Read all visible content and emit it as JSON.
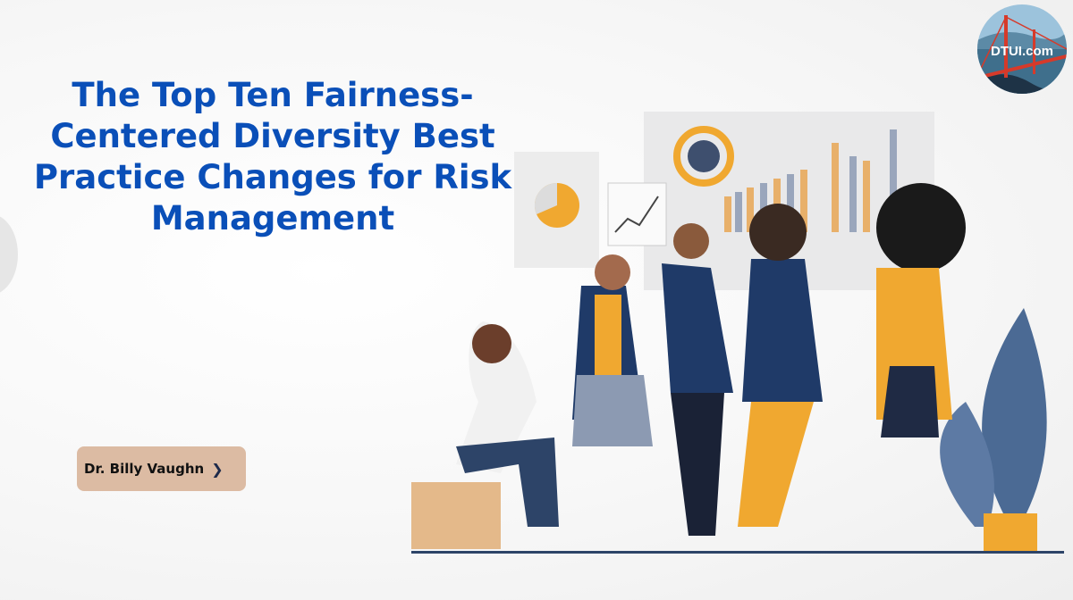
{
  "title": "The Top Ten Fairness-Centered Diversity Best Practice Changes for Risk Management",
  "title_lines": [
    "The Top Ten Fairness-",
    "Centered Diversity Best",
    "Practice Changes for Risk",
    "Management"
  ],
  "author_button": {
    "label": "Dr. Billy Vaughn",
    "icon": "chevron-right-icon"
  },
  "logo": {
    "text": "DTUI.com"
  },
  "colors": {
    "title": "#0a4fb8",
    "button_bg": "#dcbba3",
    "accent_yellow": "#f0a830",
    "navy": "#1f3a68"
  }
}
